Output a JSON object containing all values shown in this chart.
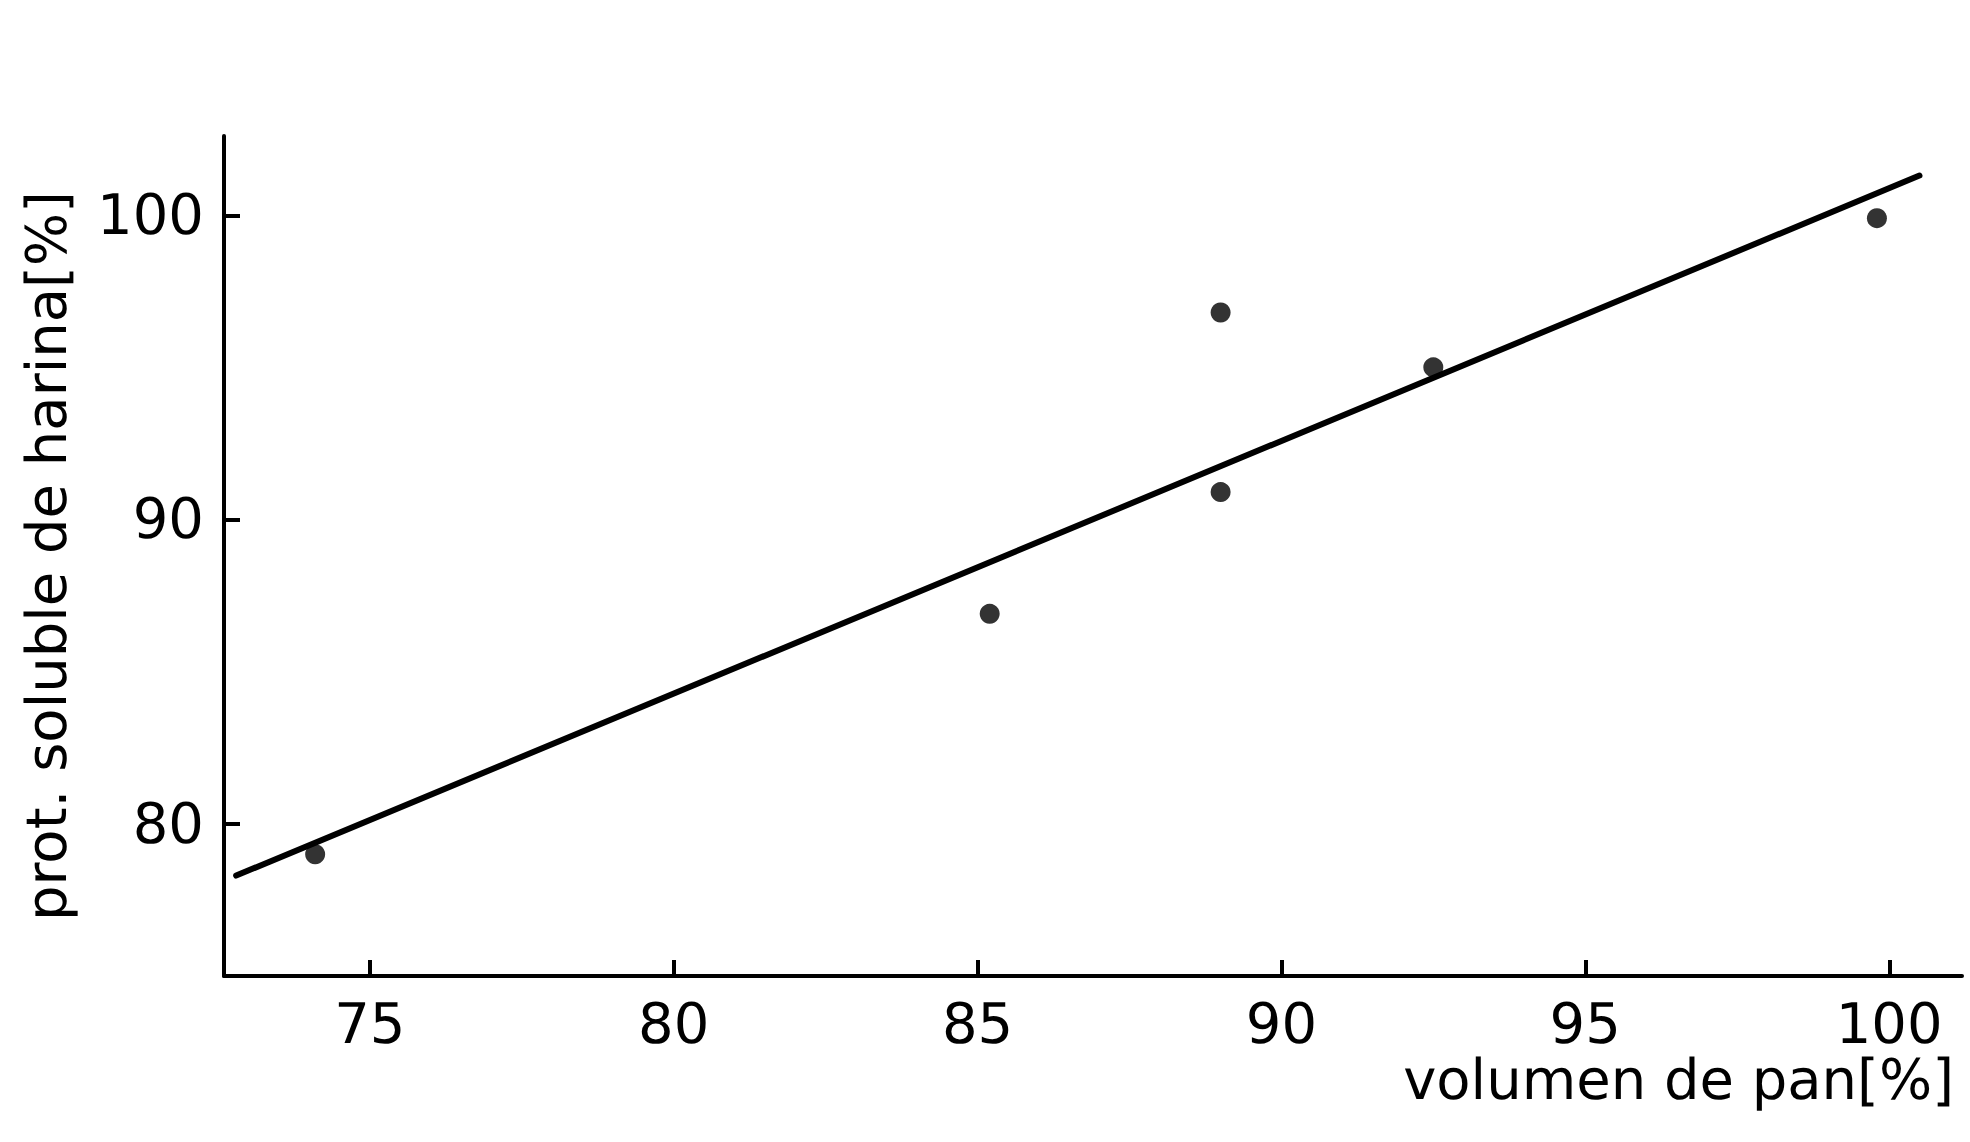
{
  "chart_data": {
    "type": "scatter",
    "xlabel": "volumen de pan[%]",
    "ylabel": "prot. soluble de harina[%]",
    "xlim": [
      72.6,
      101.2
    ],
    "ylim": [
      75,
      102.6
    ],
    "xticks": [
      75,
      80,
      85,
      90,
      95,
      100
    ],
    "yticks": [
      80,
      90,
      100
    ],
    "marker": "circle",
    "series": [
      {
        "color": "#000000",
        "x": [
          74.1,
          85.2,
          89.0,
          89.0,
          92.5,
          99.8
        ],
        "values": [
          79.0,
          86.9,
          96.8,
          90.9,
          95.0,
          99.9
        ]
      },
      {
        "type": "line",
        "color": "#000000",
        "marker": "none",
        "line_style": "solid",
        "x": [
          72.8,
          100.5
        ],
        "values": [
          78.3,
          101.3
        ]
      }
    ]
  }
}
